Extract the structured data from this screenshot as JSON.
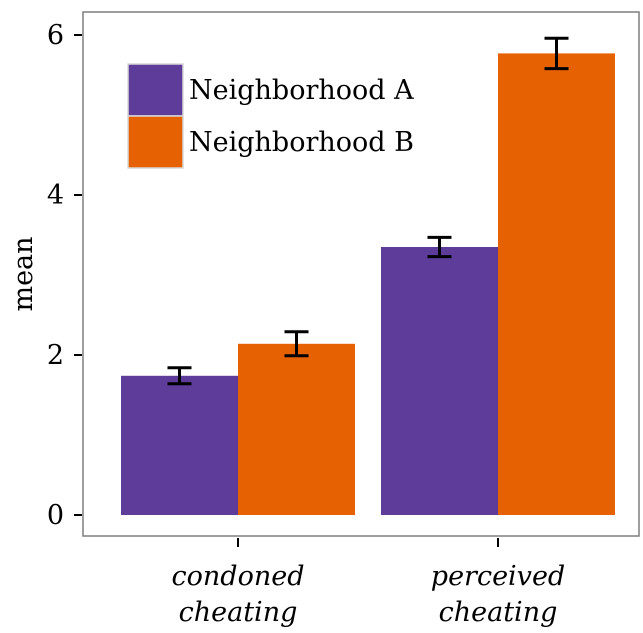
{
  "chart_data": {
    "type": "bar",
    "title": "",
    "xlabel": "",
    "ylabel": "mean",
    "ylim": [
      0,
      6.3
    ],
    "yticks": [
      0,
      2,
      4,
      6
    ],
    "categories": [
      [
        "condoned",
        "cheating"
      ],
      [
        "perceived",
        "cheating"
      ]
    ],
    "series": [
      {
        "name": "Neighborhood A",
        "color": "#5e3c99",
        "values": [
          1.74,
          3.35
        ],
        "error": [
          0.1,
          0.12
        ]
      },
      {
        "name": "Neighborhood B",
        "color": "#e66101",
        "values": [
          2.14,
          5.77
        ],
        "error": [
          0.15,
          0.19
        ]
      }
    ],
    "grid": false,
    "legend_position": "top-left",
    "error_bars": true
  }
}
